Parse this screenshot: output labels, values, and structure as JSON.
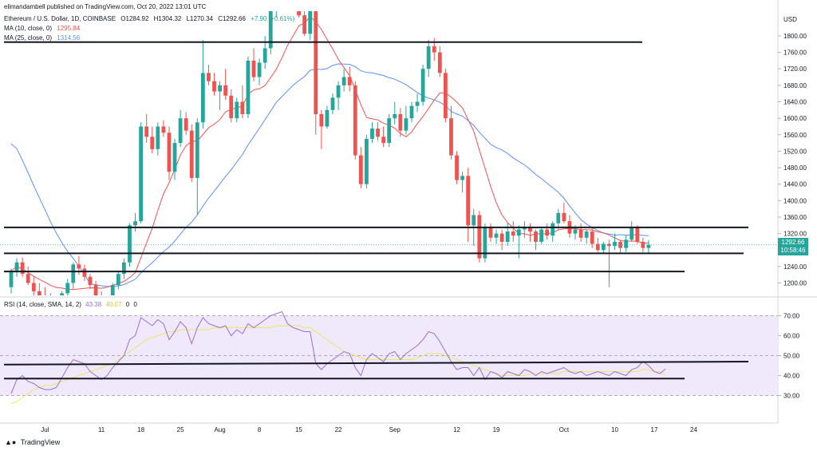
{
  "publisher": "elimandambell published on TradingView.com, Oct 20, 2022 13:01 UTC",
  "symbol": {
    "name": "Ethereum / U.S. Dollar, 1D, COINBASE",
    "open": "O1284.92",
    "high": "H1304.32",
    "low": "L1270.34",
    "close": "C1292.66",
    "change": "+7.90 (+0.61%)"
  },
  "ma10": {
    "label": "MA (10, close, 0)",
    "value": "1295.84",
    "color": "#ef5350"
  },
  "ma25": {
    "label": "MA (25, close, 0)",
    "value": "1314.56",
    "color": "#5b8ff9"
  },
  "currency": "USD",
  "last_price": {
    "value": "1292.66",
    "countdown": "10:58:46",
    "color": "#26a69a"
  },
  "rsi_legend": {
    "label": "RSI (14, close, SMA, 14, 2)",
    "rsi": "43.38",
    "sma": "40.07",
    "extra1": "0",
    "extra2": "0"
  },
  "colors": {
    "up": "#26a69a",
    "down": "#ef5350",
    "rsi_line": "#9c6ed8",
    "rsi_sma": "#e8e86a",
    "rsi_band": "#efe9fb"
  },
  "brand": "TradingView",
  "chart_data": {
    "type": "candlestick",
    "price_ticks": [
      1200,
      1240,
      1280,
      1320,
      1360,
      1400,
      1440,
      1480,
      1520,
      1560,
      1600,
      1640,
      1680,
      1720,
      1760,
      1800
    ],
    "price_range": [
      1170,
      1860
    ],
    "rsi_ticks": [
      30,
      40,
      50,
      60,
      70
    ],
    "rsi_range": [
      21,
      77
    ],
    "x_labels": [
      {
        "label": "Jul",
        "index": 6
      },
      {
        "label": "11",
        "index": 16
      },
      {
        "label": "18",
        "index": 23
      },
      {
        "label": "25",
        "index": 30
      },
      {
        "label": "Aug",
        "index": 37
      },
      {
        "label": "8",
        "index": 44
      },
      {
        "label": "15",
        "index": 51
      },
      {
        "label": "22",
        "index": 58
      },
      {
        "label": "Sep",
        "index": 68
      },
      {
        "label": "12",
        "index": 79
      },
      {
        "label": "19",
        "index": 86
      },
      {
        "label": "Oct",
        "index": 98
      },
      {
        "label": "10",
        "index": 107
      },
      {
        "label": "17",
        "index": 114
      },
      {
        "label": "24",
        "index": 121
      }
    ],
    "candles": [
      [
        1190,
        1235,
        1175,
        1230
      ],
      [
        1230,
        1260,
        1215,
        1250
      ],
      [
        1250,
        1262,
        1215,
        1222
      ],
      [
        1222,
        1240,
        1195,
        1200
      ],
      [
        1200,
        1215,
        1170,
        1180
      ],
      [
        1180,
        1200,
        1150,
        1170
      ],
      [
        1170,
        1190,
        1140,
        1160
      ],
      [
        1160,
        1175,
        1120,
        1140
      ],
      [
        1140,
        1160,
        1110,
        1150
      ],
      [
        1150,
        1180,
        1140,
        1175
      ],
      [
        1175,
        1210,
        1160,
        1200
      ],
      [
        1200,
        1250,
        1185,
        1245
      ],
      [
        1245,
        1265,
        1220,
        1235
      ],
      [
        1235,
        1245,
        1205,
        1215
      ],
      [
        1215,
        1222,
        1185,
        1195
      ],
      [
        1195,
        1205,
        1160,
        1168
      ],
      [
        1168,
        1180,
        1135,
        1150
      ],
      [
        1150,
        1170,
        1130,
        1165
      ],
      [
        1165,
        1200,
        1155,
        1195
      ],
      [
        1195,
        1230,
        1185,
        1222
      ],
      [
        1222,
        1260,
        1210,
        1250
      ],
      [
        1250,
        1345,
        1240,
        1340
      ],
      [
        1340,
        1370,
        1325,
        1350
      ],
      [
        1350,
        1590,
        1345,
        1580
      ],
      [
        1580,
        1610,
        1540,
        1555
      ],
      [
        1555,
        1580,
        1515,
        1525
      ],
      [
        1525,
        1590,
        1510,
        1580
      ],
      [
        1580,
        1595,
        1555,
        1565
      ],
      [
        1565,
        1580,
        1450,
        1470
      ],
      [
        1470,
        1550,
        1450,
        1540
      ],
      [
        1540,
        1620,
        1530,
        1600
      ],
      [
        1600,
        1615,
        1560,
        1570
      ],
      [
        1570,
        1585,
        1445,
        1455
      ],
      [
        1455,
        1600,
        1365,
        1590
      ],
      [
        1590,
        1790,
        1575,
        1710
      ],
      [
        1710,
        1730,
        1680,
        1690
      ],
      [
        1690,
        1710,
        1655,
        1665
      ],
      [
        1665,
        1690,
        1620,
        1680
      ],
      [
        1680,
        1720,
        1645,
        1655
      ],
      [
        1655,
        1670,
        1590,
        1600
      ],
      [
        1600,
        1650,
        1590,
        1640
      ],
      [
        1640,
        1680,
        1600,
        1610
      ],
      [
        1610,
        1750,
        1600,
        1740
      ],
      [
        1740,
        1770,
        1690,
        1700
      ],
      [
        1700,
        1745,
        1680,
        1735
      ],
      [
        1735,
        1800,
        1720,
        1770
      ],
      [
        1770,
        1880,
        1755,
        1860
      ],
      [
        1860,
        1890,
        1845,
        1880
      ],
      [
        1880,
        1950,
        1860,
        1935
      ],
      [
        1935,
        2010,
        1890,
        1900
      ],
      [
        1900,
        1910,
        1870,
        1875
      ],
      [
        1875,
        1880,
        1845,
        1850
      ],
      [
        1850,
        1865,
        1800,
        1805
      ],
      [
        1805,
        1870,
        1790,
        1860
      ],
      [
        1860,
        1870,
        1560,
        1610
      ],
      [
        1610,
        1620,
        1525,
        1580
      ],
      [
        1580,
        1630,
        1575,
        1620
      ],
      [
        1620,
        1660,
        1610,
        1650
      ],
      [
        1650,
        1690,
        1620,
        1680
      ],
      [
        1680,
        1720,
        1665,
        1700
      ],
      [
        1700,
        1725,
        1665,
        1680
      ],
      [
        1680,
        1690,
        1500,
        1510
      ],
      [
        1510,
        1530,
        1430,
        1440
      ],
      [
        1440,
        1560,
        1430,
        1550
      ],
      [
        1550,
        1590,
        1540,
        1575
      ],
      [
        1575,
        1590,
        1545,
        1555
      ],
      [
        1555,
        1580,
        1530,
        1540
      ],
      [
        1540,
        1610,
        1530,
        1600
      ],
      [
        1600,
        1640,
        1585,
        1610
      ],
      [
        1610,
        1625,
        1555,
        1570
      ],
      [
        1570,
        1630,
        1560,
        1600
      ],
      [
        1600,
        1640,
        1590,
        1630
      ],
      [
        1630,
        1660,
        1615,
        1640
      ],
      [
        1640,
        1730,
        1630,
        1720
      ],
      [
        1720,
        1790,
        1700,
        1775
      ],
      [
        1775,
        1795,
        1740,
        1760
      ],
      [
        1760,
        1775,
        1700,
        1710
      ],
      [
        1710,
        1720,
        1590,
        1600
      ],
      [
        1600,
        1630,
        1500,
        1510
      ],
      [
        1510,
        1520,
        1440,
        1450
      ],
      [
        1450,
        1470,
        1420,
        1460
      ],
      [
        1460,
        1480,
        1300,
        1340
      ],
      [
        1340,
        1380,
        1290,
        1365
      ],
      [
        1365,
        1375,
        1250,
        1260
      ],
      [
        1260,
        1345,
        1250,
        1335
      ],
      [
        1335,
        1345,
        1300,
        1310
      ],
      [
        1310,
        1330,
        1295,
        1320
      ],
      [
        1320,
        1330,
        1280,
        1300
      ],
      [
        1300,
        1345,
        1290,
        1325
      ],
      [
        1325,
        1350,
        1300,
        1315
      ],
      [
        1315,
        1340,
        1260,
        1330
      ],
      [
        1330,
        1350,
        1310,
        1335
      ],
      [
        1335,
        1345,
        1300,
        1325
      ],
      [
        1325,
        1330,
        1280,
        1300
      ],
      [
        1300,
        1335,
        1295,
        1330
      ],
      [
        1330,
        1345,
        1305,
        1315
      ],
      [
        1315,
        1350,
        1300,
        1345
      ],
      [
        1345,
        1380,
        1330,
        1370
      ],
      [
        1370,
        1395,
        1345,
        1350
      ],
      [
        1350,
        1365,
        1310,
        1320
      ],
      [
        1320,
        1340,
        1305,
        1330
      ],
      [
        1330,
        1345,
        1300,
        1310
      ],
      [
        1310,
        1330,
        1295,
        1325
      ],
      [
        1325,
        1335,
        1285,
        1295
      ],
      [
        1295,
        1310,
        1275,
        1280
      ],
      [
        1280,
        1300,
        1270,
        1295
      ],
      [
        1295,
        1305,
        1190,
        1290
      ],
      [
        1290,
        1320,
        1280,
        1300
      ],
      [
        1300,
        1305,
        1270,
        1285
      ],
      [
        1285,
        1315,
        1275,
        1305
      ],
      [
        1305,
        1350,
        1300,
        1335
      ],
      [
        1335,
        1340,
        1295,
        1300
      ],
      [
        1300,
        1310,
        1275,
        1285
      ],
      [
        1285,
        1304,
        1270,
        1292.66
      ]
    ],
    "rsi": [
      31,
      38,
      40,
      37,
      36,
      34,
      33,
      33,
      34,
      39,
      44,
      48,
      47,
      46,
      42,
      40,
      38,
      40,
      44,
      47,
      50,
      58,
      60,
      69,
      67,
      65,
      68,
      66,
      58,
      62,
      67,
      64,
      56,
      64,
      69,
      66,
      65,
      64,
      65,
      60,
      63,
      61,
      66,
      64,
      66,
      68,
      70,
      71,
      72,
      66,
      64,
      63,
      62,
      62,
      46,
      43,
      46,
      48,
      50,
      52,
      51,
      44,
      40,
      48,
      51,
      49,
      47,
      51,
      52,
      48,
      51,
      53,
      55,
      58,
      62,
      61,
      57,
      52,
      47,
      43,
      44,
      44,
      40,
      44,
      38,
      42,
      41,
      39,
      42,
      41,
      40,
      43,
      42,
      40,
      42,
      41,
      42,
      43,
      44,
      42,
      41,
      42,
      40,
      41,
      42,
      41,
      40,
      42,
      41,
      40,
      43,
      44,
      47,
      45,
      42,
      41,
      43.38
    ],
    "rsi_sma": [
      26,
      27,
      29,
      31,
      33,
      34,
      35,
      35,
      36,
      37,
      38,
      39,
      40,
      41,
      42,
      43,
      44,
      45,
      46,
      48,
      50,
      52,
      54,
      56,
      58,
      59,
      60,
      61,
      62,
      62,
      63,
      63,
      63,
      63,
      63,
      63,
      64,
      64,
      64,
      64,
      64,
      64,
      64,
      64,
      64,
      64,
      64,
      65,
      65,
      65,
      65,
      65,
      64,
      64,
      62,
      60,
      58,
      56,
      54,
      52,
      51,
      50,
      49,
      48,
      48,
      48,
      48,
      48,
      48,
      48,
      48,
      48,
      49,
      50,
      51,
      51,
      51,
      50,
      49,
      48,
      47,
      46,
      45,
      44,
      43,
      42,
      41,
      40,
      40,
      40,
      40,
      40,
      41,
      41,
      41,
      41,
      41,
      41,
      42,
      42,
      42,
      42,
      42,
      42,
      42,
      42,
      42,
      42,
      42,
      42,
      42,
      42,
      43,
      43,
      42,
      42,
      40.07
    ]
  }
}
